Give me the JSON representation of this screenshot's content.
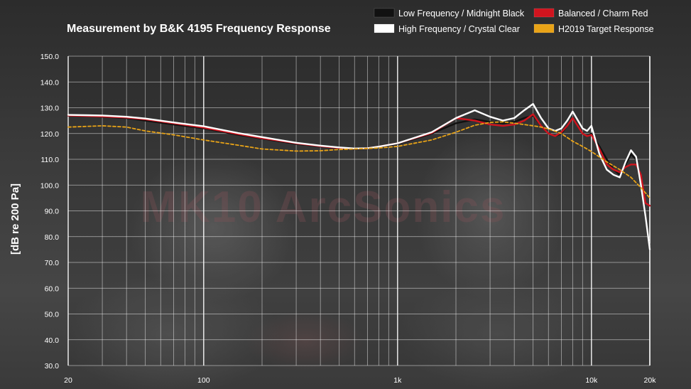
{
  "chart_data": {
    "type": "line",
    "title": "Measurement by B&K 4195  Frequency Response",
    "ylabel": "[dB re 200 Pa]",
    "xlabel": "",
    "x_scale": "log",
    "xlim": [
      20,
      20000
    ],
    "ylim": [
      30,
      150
    ],
    "grid": true,
    "legend_position": "top-right",
    "watermark": "MK10 ArcSonics",
    "y_ticks": [
      "150.0",
      "140.0",
      "130.0",
      "120.0",
      "110.0",
      "100.0",
      "90.0",
      "80.0",
      "70.0",
      "60.0",
      "50.0",
      "40.0",
      "30.0"
    ],
    "x_ticks": [
      {
        "value": 20,
        "label": "20"
      },
      {
        "value": 100,
        "label": "100"
      },
      {
        "value": 1000,
        "label": "1k"
      },
      {
        "value": 10000,
        "label": "10k"
      },
      {
        "value": 20000,
        "label": "20k"
      }
    ],
    "series": [
      {
        "name": "Low Frequency / Midnight Black",
        "color": "#111111",
        "style": "solid",
        "x": [
          20,
          30,
          40,
          50,
          70,
          100,
          150,
          200,
          300,
          400,
          500,
          600,
          700,
          800,
          1000,
          1500,
          2000,
          2500,
          3000,
          3500,
          4000,
          4500,
          5000,
          5500,
          6000,
          6500,
          7000,
          7500,
          8000,
          9000,
          9500,
          10000,
          11000,
          12000,
          13000,
          14000,
          15000,
          16000,
          17000,
          18000,
          19000,
          20000
        ],
        "y": [
          127,
          126.5,
          126,
          125,
          123.5,
          122,
          119.5,
          118,
          116,
          115,
          114.3,
          114,
          114.2,
          114.8,
          116,
          120,
          124,
          125.5,
          124.5,
          124,
          124.5,
          126,
          127,
          123,
          120,
          119,
          120,
          123,
          126,
          120,
          119,
          120,
          115,
          110,
          106,
          104,
          108,
          112,
          110,
          100,
          88,
          75
        ]
      },
      {
        "name": "Balanced / Charm Red",
        "color": "#d0141e",
        "style": "solid",
        "x": [
          20,
          30,
          40,
          50,
          70,
          100,
          150,
          200,
          300,
          400,
          500,
          600,
          700,
          800,
          1000,
          1500,
          2000,
          2500,
          3000,
          3500,
          4000,
          4500,
          5000,
          5500,
          6000,
          6500,
          7000,
          7500,
          8000,
          9000,
          9500,
          10000,
          11000,
          12000,
          13000,
          14000,
          15000,
          16000,
          17000,
          18000,
          19000,
          20000
        ],
        "y": [
          127,
          126.6,
          126.2,
          125.5,
          124,
          122.3,
          119.8,
          118.2,
          116.2,
          115.1,
          114.4,
          114.1,
          114.3,
          114.9,
          116.2,
          120.2,
          126,
          125,
          123.5,
          123,
          123.5,
          125,
          127.5,
          123,
          120,
          119,
          120.5,
          123,
          126,
          120,
          119,
          119.5,
          114,
          108,
          106,
          105,
          107,
          108,
          108,
          104,
          93,
          92
        ]
      },
      {
        "name": "High Frequency / Crystal Clear",
        "color": "#ffffff",
        "style": "solid",
        "x": [
          20,
          30,
          40,
          50,
          70,
          100,
          150,
          200,
          300,
          400,
          500,
          600,
          700,
          800,
          1000,
          1500,
          2000,
          2500,
          3000,
          3500,
          4000,
          4500,
          5000,
          5500,
          6000,
          6500,
          7000,
          7500,
          8000,
          9000,
          9500,
          10000,
          11000,
          12000,
          13000,
          14000,
          15000,
          16000,
          17000,
          18000,
          19000,
          20000
        ],
        "y": [
          127.2,
          127,
          126.5,
          125.8,
          124.3,
          122.8,
          120.2,
          118.6,
          116.4,
          115.3,
          114.6,
          114.2,
          114.3,
          114.9,
          116.2,
          120.5,
          126,
          129,
          126.5,
          125,
          126,
          129,
          131.5,
          126,
          122,
          121,
          122,
          125,
          128.5,
          122,
          121,
          123,
          112,
          106,
          104,
          103,
          109,
          113.5,
          111,
          100,
          88,
          75
        ]
      },
      {
        "name": "H2019 Target Response",
        "color": "#e8a317",
        "style": "dashed",
        "x": [
          20,
          30,
          40,
          50,
          70,
          100,
          150,
          200,
          300,
          400,
          500,
          600,
          700,
          800,
          1000,
          1500,
          2000,
          2500,
          3000,
          3500,
          4000,
          4500,
          5000,
          5500,
          6000,
          7000,
          8000,
          9000,
          10000,
          12000,
          14000,
          16000,
          18000,
          20000
        ],
        "y": [
          122.5,
          123,
          122.5,
          121,
          119.5,
          117.5,
          115.5,
          114,
          113.2,
          113.3,
          113.8,
          114,
          114.2,
          114.4,
          115,
          117.5,
          120.5,
          123.2,
          124.3,
          124.5,
          124,
          123.5,
          123,
          122.5,
          121.8,
          120,
          117,
          115,
          113,
          109,
          106,
          103,
          99,
          95
        ]
      }
    ]
  }
}
